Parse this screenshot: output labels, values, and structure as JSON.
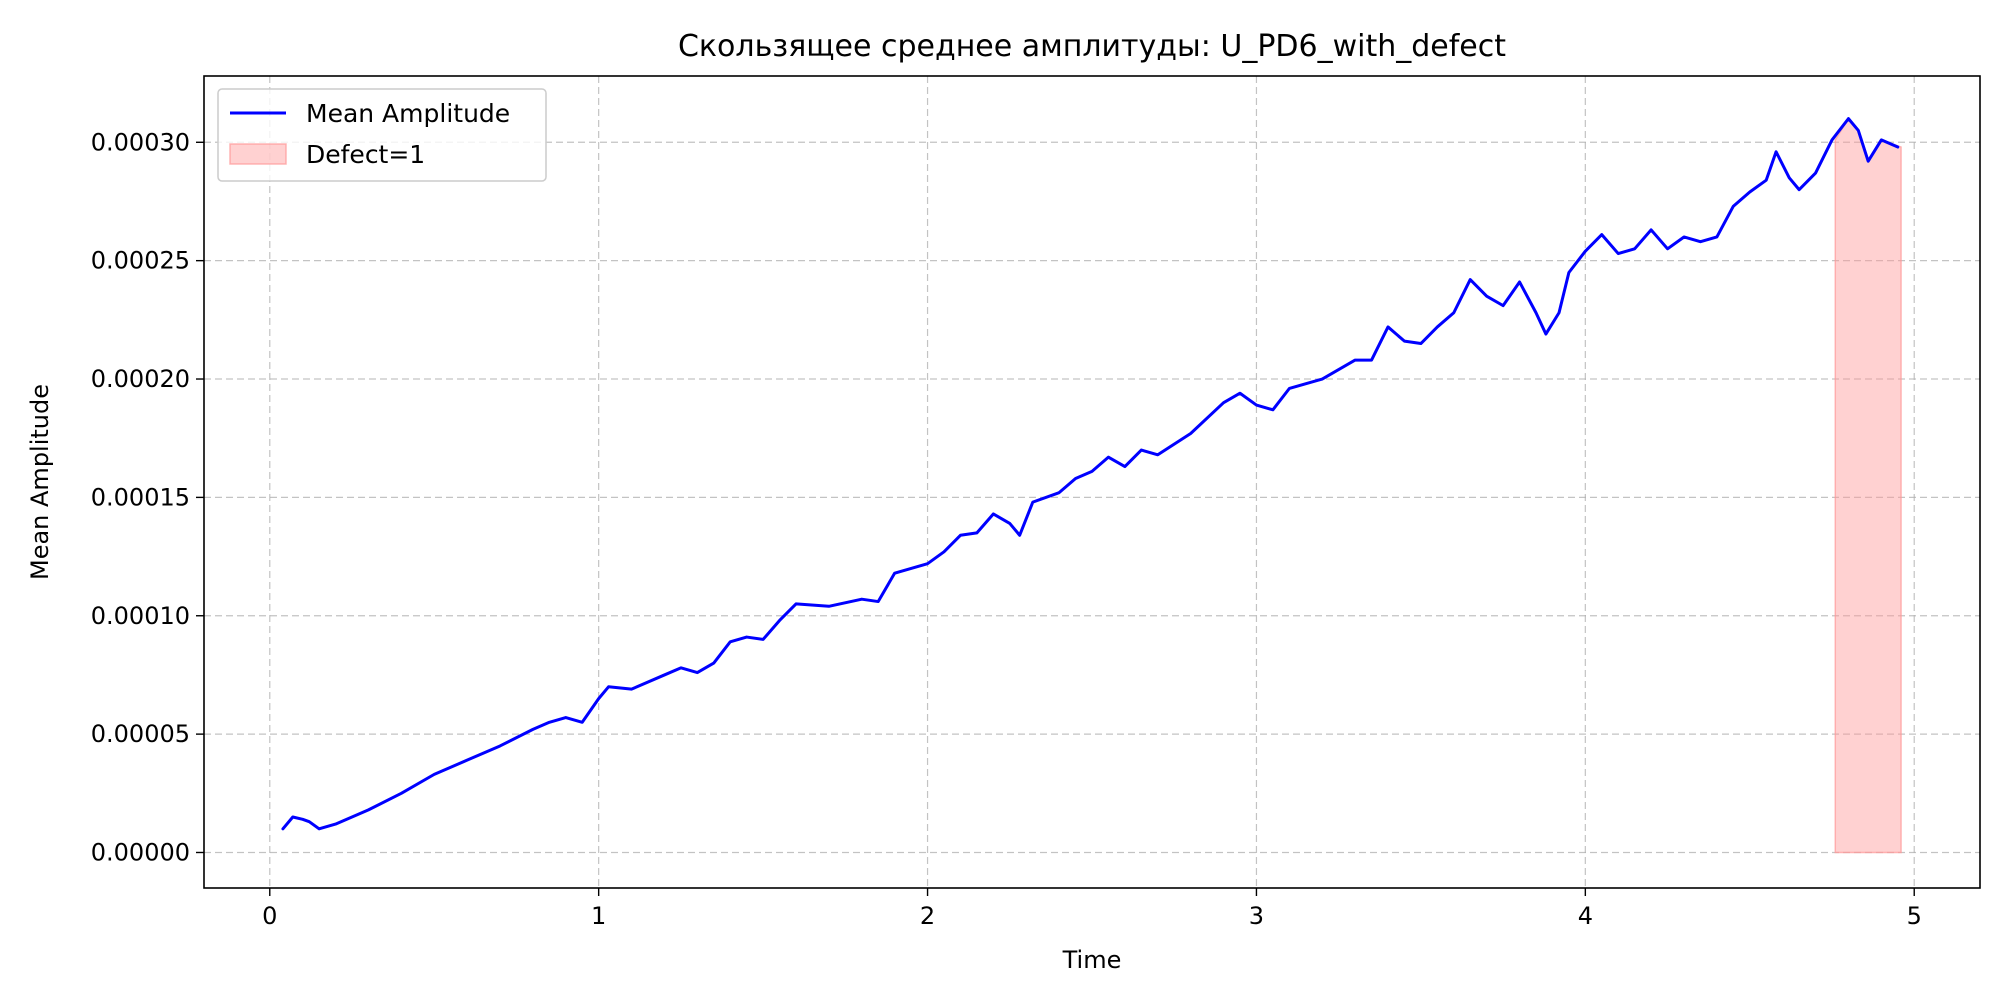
{
  "chart_data": {
    "type": "line",
    "title": "Скользящее среднее амплитуды: U_PD6_with_defect",
    "xlabel": "Time",
    "ylabel": "Mean Amplitude",
    "xlim": [
      -0.2,
      5.2
    ],
    "ylim": [
      -1.5e-05,
      0.000328
    ],
    "xticks": [
      0,
      1,
      2,
      3,
      4,
      5
    ],
    "xtick_labels": [
      "0",
      "1",
      "2",
      "3",
      "4",
      "5"
    ],
    "yticks": [
      0,
      5e-05,
      0.0001,
      0.00015,
      0.0002,
      0.00025,
      0.0003
    ],
    "ytick_labels": [
      "0.00000",
      "0.00005",
      "0.00010",
      "0.00015",
      "0.00020",
      "0.00025",
      "0.00030"
    ],
    "grid": true,
    "legend_position": "top-left",
    "series": [
      {
        "name": "Mean Amplitude",
        "color": "#0000ff",
        "x": [
          0.04,
          0.07,
          0.1,
          0.12,
          0.15,
          0.2,
          0.3,
          0.4,
          0.5,
          0.6,
          0.7,
          0.8,
          0.85,
          0.9,
          0.95,
          1.0,
          1.03,
          1.1,
          1.2,
          1.25,
          1.3,
          1.35,
          1.4,
          1.45,
          1.5,
          1.55,
          1.6,
          1.7,
          1.8,
          1.85,
          1.9,
          2.0,
          2.05,
          2.1,
          2.15,
          2.2,
          2.25,
          2.28,
          2.32,
          2.4,
          2.45,
          2.5,
          2.55,
          2.6,
          2.65,
          2.7,
          2.8,
          2.9,
          2.95,
          3.0,
          3.05,
          3.1,
          3.2,
          3.3,
          3.35,
          3.4,
          3.45,
          3.5,
          3.55,
          3.6,
          3.65,
          3.7,
          3.75,
          3.8,
          3.85,
          3.88,
          3.92,
          3.95,
          4.0,
          4.05,
          4.1,
          4.15,
          4.2,
          4.25,
          4.3,
          4.35,
          4.4,
          4.45,
          4.5,
          4.55,
          4.58,
          4.62,
          4.65,
          4.7,
          4.75,
          4.8,
          4.83,
          4.86,
          4.9,
          4.95
        ],
        "y": [
          1e-05,
          1.5e-05,
          1.4e-05,
          1.3e-05,
          1e-05,
          1.2e-05,
          1.8e-05,
          2.5e-05,
          3.3e-05,
          3.9e-05,
          4.5e-05,
          5.2e-05,
          5.5e-05,
          5.7e-05,
          5.5e-05,
          6.5e-05,
          7e-05,
          6.9e-05,
          7.5e-05,
          7.8e-05,
          7.6e-05,
          8e-05,
          8.9e-05,
          9.1e-05,
          9e-05,
          9.8e-05,
          0.000105,
          0.000104,
          0.000107,
          0.000106,
          0.000118,
          0.000122,
          0.000127,
          0.000134,
          0.000135,
          0.000143,
          0.000139,
          0.000134,
          0.000148,
          0.000152,
          0.000158,
          0.000161,
          0.000167,
          0.000163,
          0.00017,
          0.000168,
          0.000177,
          0.00019,
          0.000194,
          0.000189,
          0.000187,
          0.000196,
          0.0002,
          0.000208,
          0.000208,
          0.000222,
          0.000216,
          0.000215,
          0.000222,
          0.000228,
          0.000242,
          0.000235,
          0.000231,
          0.000241,
          0.000228,
          0.000219,
          0.000228,
          0.000245,
          0.000254,
          0.000261,
          0.000253,
          0.000255,
          0.000263,
          0.000255,
          0.00026,
          0.000258,
          0.00026,
          0.000273,
          0.000279,
          0.000284,
          0.000296,
          0.000285,
          0.00028,
          0.000287,
          0.000301,
          0.00031,
          0.000305,
          0.000292,
          0.000301,
          0.000298
        ]
      }
    ],
    "shaded_region": {
      "name": "Defect=1",
      "color": "#ff9999",
      "x_start": 4.76,
      "x_end": 4.96,
      "y_bottom": 0,
      "top_x": [
        4.76,
        4.8,
        4.83,
        4.86,
        4.9,
        4.96
      ],
      "top_y": [
        0.000301,
        0.00031,
        0.000305,
        0.000292,
        0.000301,
        0.000298
      ]
    }
  }
}
